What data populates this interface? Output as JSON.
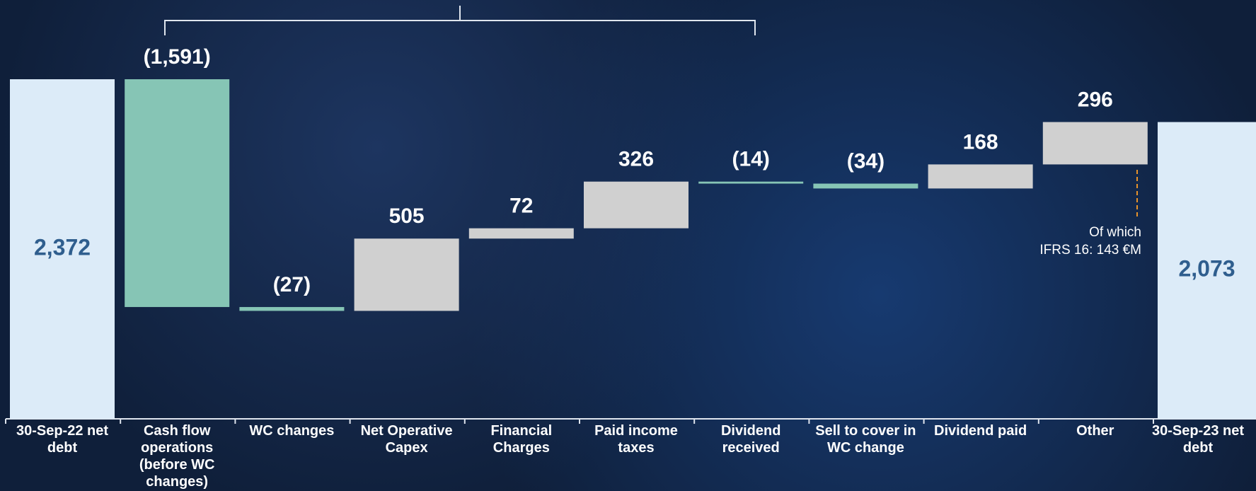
{
  "chart_data": {
    "type": "waterfall",
    "categories": [
      "30-Sep-22 net debt",
      "Cash flow operations (before WC changes)",
      "WC changes",
      "Net Operative Capex",
      "Financial Charges",
      "Paid income taxes",
      "Dividend received",
      "Sell to cover in WC change",
      "Dividend paid",
      "Other",
      "30-Sep-23 net debt"
    ],
    "values": [
      2372,
      -1591,
      -27,
      505,
      72,
      326,
      -14,
      -34,
      168,
      296,
      2073
    ],
    "value_labels": [
      "2,372",
      "(1,591)",
      "(27)",
      "505",
      "72",
      "326",
      "(14)",
      "(34)",
      "168",
      "296",
      "2,073"
    ],
    "total_color": "#dcebf8",
    "increase_color": "#d0d0d0",
    "decrease_color": "#86c5b5",
    "annotation": [
      "Of which",
      "IFRS 16: 143 €M"
    ]
  }
}
